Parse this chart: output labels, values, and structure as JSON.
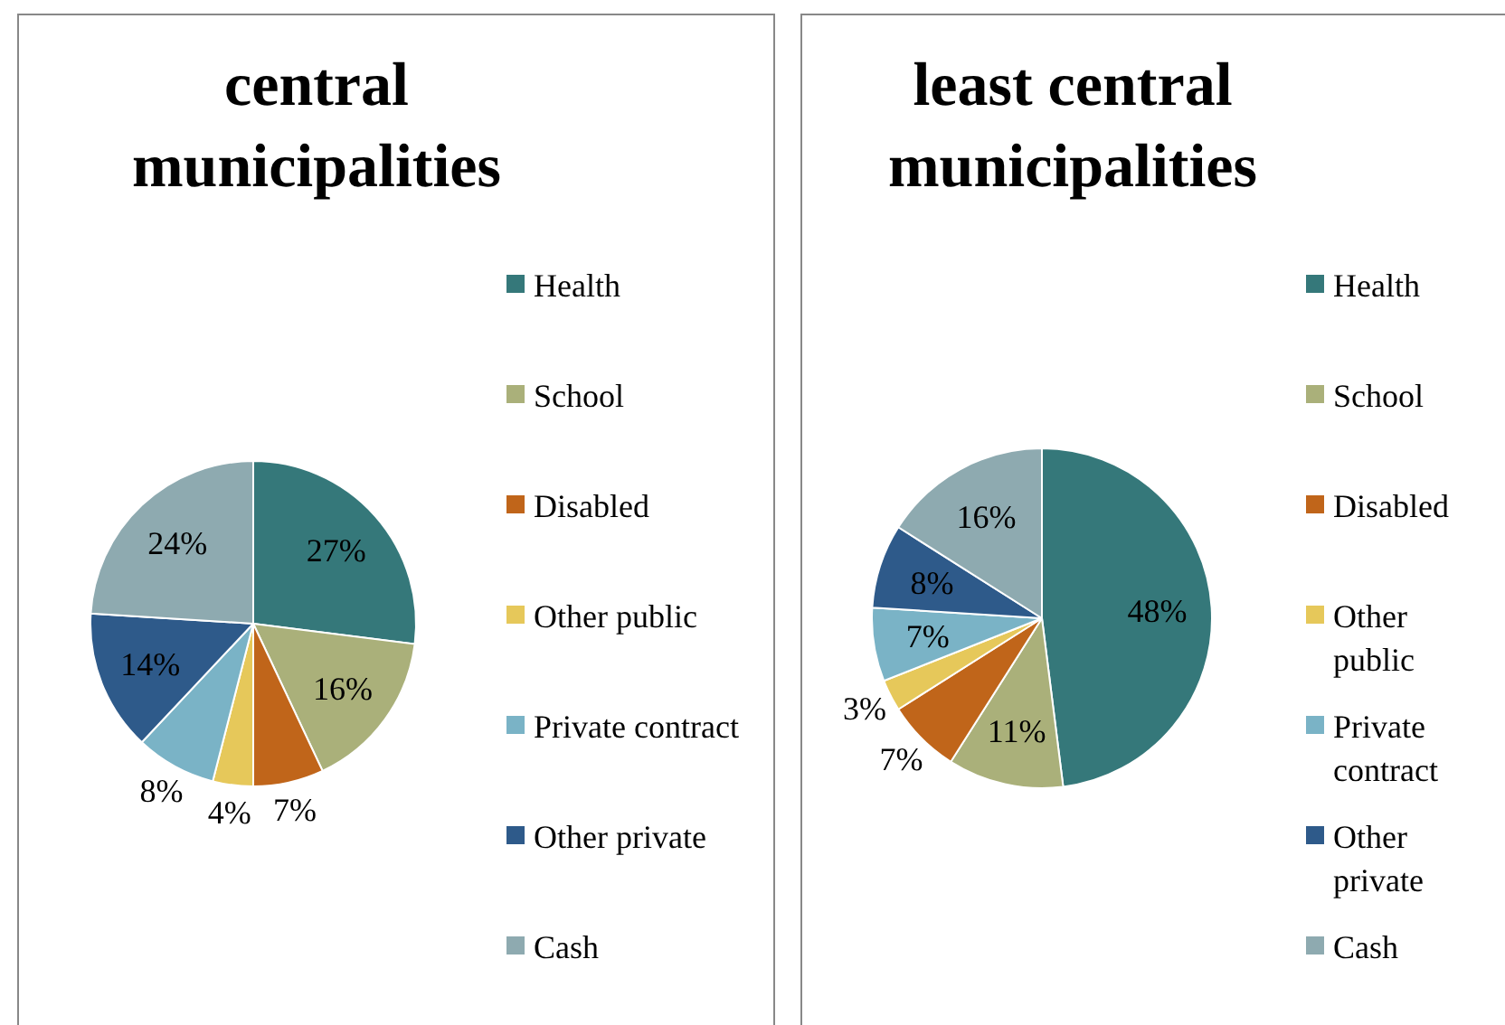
{
  "chart_data": [
    {
      "type": "pie",
      "title": "central municipalities",
      "categories": [
        "Health",
        "School",
        "Disabled",
        "Other public",
        "Private contract",
        "Other private",
        "Cash"
      ],
      "values": [
        27,
        16,
        7,
        4,
        8,
        14,
        24
      ],
      "value_labels": [
        "27%",
        "16%",
        "7%",
        "4%",
        "8%",
        "14%",
        "24%"
      ],
      "colors": [
        "#35787a",
        "#aab07a",
        "#c0651a",
        "#e6c85a",
        "#7ab3c6",
        "#2e5a8a",
        "#8eaab0"
      ],
      "legend": "right"
    },
    {
      "type": "pie",
      "title": "least central municipalities",
      "categories": [
        "Health",
        "School",
        "Disabled",
        "Other public",
        "Private contract",
        "Other private",
        "Cash"
      ],
      "values": [
        48,
        11,
        7,
        3,
        7,
        8,
        16
      ],
      "value_labels": [
        "48%",
        "11%",
        "7%",
        "3%",
        "7%",
        "8%",
        "16%"
      ],
      "colors": [
        "#35787a",
        "#aab07a",
        "#c0651a",
        "#e6c85a",
        "#7ab3c6",
        "#2e5a8a",
        "#8eaab0"
      ],
      "legend": "right"
    }
  ]
}
